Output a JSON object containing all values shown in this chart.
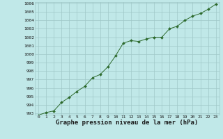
{
  "x": [
    0,
    1,
    2,
    3,
    4,
    5,
    6,
    7,
    8,
    9,
    10,
    11,
    12,
    13,
    14,
    15,
    16,
    17,
    18,
    19,
    20,
    21,
    22,
    23
  ],
  "y": [
    992.8,
    993.1,
    993.3,
    994.3,
    994.9,
    995.6,
    996.2,
    997.2,
    997.6,
    998.5,
    999.8,
    1001.3,
    1001.6,
    1001.5,
    1001.8,
    1002.0,
    1002.0,
    1003.0,
    1003.3,
    1004.0,
    1004.5,
    1004.8,
    1005.3,
    1005.9
  ],
  "line_color": "#2d6a2d",
  "marker_color": "#2d6a2d",
  "bg_color": "#c0e8e8",
  "grid_color": "#a0c8c8",
  "xlabel": "Graphe pression niveau de la mer (hPa)",
  "ylim": [
    993,
    1006
  ],
  "xlim": [
    -0.5,
    23.5
  ],
  "yticks": [
    993,
    994,
    995,
    996,
    997,
    998,
    999,
    1000,
    1001,
    1002,
    1003,
    1004,
    1005,
    1006
  ],
  "xticks": [
    0,
    1,
    2,
    3,
    4,
    5,
    6,
    7,
    8,
    9,
    10,
    11,
    12,
    13,
    14,
    15,
    16,
    17,
    18,
    19,
    20,
    21,
    22,
    23
  ],
  "tick_fontsize": 4.5,
  "xlabel_fontsize": 6.5
}
